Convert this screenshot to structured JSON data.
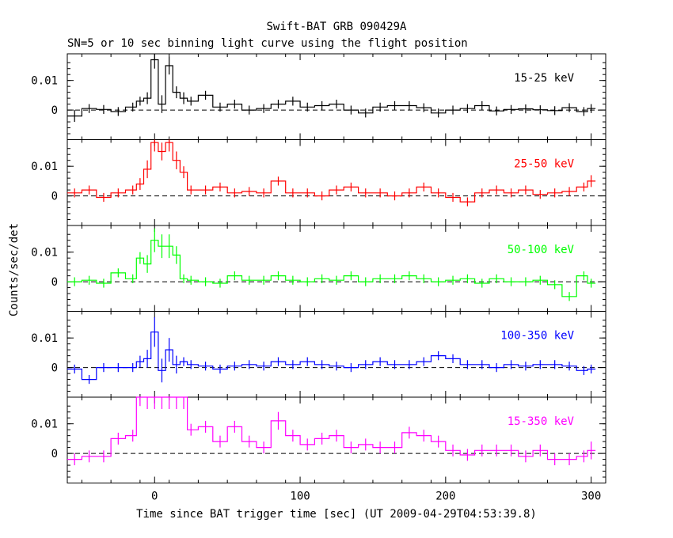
{
  "chart_data": {
    "type": "line",
    "title": "Swift-BAT GRB 090429A",
    "subtitle": "SN=5 or 10 sec binning light curve using the flight position",
    "xlabel": "Time since BAT trigger time [sec] (UT 2009-04-29T04:53:39.8)",
    "ylabel": "Counts/sec/det",
    "xlim": [
      -60,
      310
    ],
    "ylim": [
      -0.01,
      0.019
    ],
    "x_ticks": [
      0,
      100,
      200,
      300
    ],
    "y_ticks": [
      0,
      0.01
    ],
    "y_tick_labels": [
      "0",
      "0.01"
    ],
    "x_tick_labels": [
      "0",
      "100",
      "200",
      "300"
    ],
    "zero_line": "dashed",
    "panels": [
      {
        "name": "15-25 keV",
        "color": "#000000",
        "x": [
          -55,
          -45,
          -35,
          -25,
          -15,
          -10,
          -5,
          0,
          5,
          10,
          15,
          20,
          25,
          35,
          45,
          55,
          65,
          75,
          85,
          95,
          105,
          115,
          125,
          135,
          145,
          155,
          165,
          175,
          185,
          195,
          205,
          215,
          225,
          235,
          245,
          255,
          265,
          275,
          285,
          295,
          300
        ],
        "y": [
          -0.002,
          0.0005,
          0.0002,
          -0.0005,
          0.001,
          0.003,
          0.004,
          0.017,
          0.002,
          0.015,
          0.006,
          0.004,
          0.003,
          0.005,
          0.001,
          0.002,
          0,
          0.0005,
          0.002,
          0.003,
          0.001,
          0.0015,
          0.002,
          0,
          -0.001,
          0.001,
          0.0015,
          0.0015,
          0.0008,
          -0.001,
          0,
          0.0005,
          0.0015,
          -0.0003,
          0.0002,
          0.0004,
          0.0001,
          -0.0002,
          0.0008,
          -0.0005,
          0.0005
        ],
        "err": [
          0.002,
          0.0015,
          0.0015,
          0.0015,
          0.0015,
          0.0015,
          0.002,
          0.003,
          0.003,
          0.003,
          0.002,
          0.002,
          0.0015,
          0.0015,
          0.0015,
          0.0015,
          0.0015,
          0.0015,
          0.0015,
          0.0015,
          0.0015,
          0.0015,
          0.0015,
          0.0015,
          0.0015,
          0.0015,
          0.0015,
          0.0015,
          0.0015,
          0.0015,
          0.0015,
          0.0015,
          0.0015,
          0.0015,
          0.0015,
          0.0015,
          0.0015,
          0.0015,
          0.0015,
          0.0015,
          0.0015
        ]
      },
      {
        "name": "25-50 keV",
        "color": "#ff0000",
        "x": [
          -55,
          -45,
          -35,
          -25,
          -15,
          -10,
          -5,
          0,
          5,
          10,
          15,
          20,
          25,
          35,
          45,
          55,
          65,
          75,
          85,
          95,
          105,
          115,
          125,
          135,
          145,
          155,
          165,
          175,
          185,
          195,
          205,
          215,
          225,
          235,
          245,
          255,
          265,
          275,
          285,
          295,
          300
        ],
        "y": [
          0.001,
          0.002,
          -0.0005,
          0.001,
          0.002,
          0.004,
          0.009,
          0.018,
          0.015,
          0.018,
          0.012,
          0.008,
          0.002,
          0.002,
          0.003,
          0.001,
          0.0015,
          0.001,
          0.005,
          0.001,
          0.001,
          0,
          0.002,
          0.003,
          0.001,
          0.001,
          0,
          0.001,
          0.003,
          0.001,
          -0.0005,
          -0.002,
          0.001,
          0.002,
          0.001,
          0.002,
          0.0005,
          0.001,
          0.0015,
          0.003,
          0.005
        ],
        "err": [
          0.0015,
          0.0015,
          0.0015,
          0.0015,
          0.0015,
          0.002,
          0.003,
          0.003,
          0.003,
          0.003,
          0.003,
          0.002,
          0.0015,
          0.0015,
          0.0015,
          0.0015,
          0.0015,
          0.0015,
          0.0015,
          0.0015,
          0.0015,
          0.0015,
          0.0015,
          0.0015,
          0.0015,
          0.0015,
          0.0015,
          0.0015,
          0.0015,
          0.0015,
          0.0015,
          0.0015,
          0.0015,
          0.0015,
          0.0015,
          0.0015,
          0.0015,
          0.0015,
          0.0015,
          0.0015,
          0.002
        ]
      },
      {
        "name": "50-100 keV",
        "color": "#00ff00",
        "x": [
          -55,
          -45,
          -35,
          -25,
          -15,
          -10,
          -5,
          0,
          5,
          10,
          15,
          20,
          25,
          35,
          45,
          55,
          65,
          75,
          85,
          95,
          105,
          115,
          125,
          135,
          145,
          155,
          165,
          175,
          185,
          195,
          205,
          215,
          225,
          235,
          245,
          255,
          265,
          275,
          285,
          295,
          300
        ],
        "y": [
          0,
          0.0005,
          -0.0005,
          0.003,
          0.001,
          0.008,
          0.006,
          0.014,
          0.012,
          0.012,
          0.009,
          0.001,
          0.0005,
          0,
          -0.0005,
          0.002,
          0.0005,
          0.0005,
          0.002,
          0.0005,
          0,
          0.001,
          0.0005,
          0.002,
          0,
          0.001,
          0.001,
          0.002,
          0.001,
          0,
          0.0005,
          0.001,
          -0.0005,
          0.001,
          0,
          0,
          0.0005,
          -0.001,
          -0.005,
          0.002,
          -0.0005
        ],
        "err": [
          0.0015,
          0.0015,
          0.0015,
          0.0015,
          0.0015,
          0.002,
          0.003,
          0.004,
          0.004,
          0.004,
          0.003,
          0.0015,
          0.0015,
          0.0015,
          0.0015,
          0.0015,
          0.0015,
          0.0015,
          0.0015,
          0.0015,
          0.0015,
          0.0015,
          0.0015,
          0.0015,
          0.0015,
          0.0015,
          0.0015,
          0.0015,
          0.0015,
          0.0015,
          0.0015,
          0.0015,
          0.0015,
          0.0015,
          0.0015,
          0.0015,
          0.0015,
          0.0015,
          0.0015,
          0.0015,
          0.0015
        ]
      },
      {
        "name": "100-350 keV",
        "color": "#0000ff",
        "x": [
          -55,
          -45,
          -35,
          -25,
          -15,
          -10,
          -5,
          0,
          5,
          10,
          15,
          20,
          25,
          35,
          45,
          55,
          65,
          75,
          85,
          95,
          105,
          115,
          125,
          135,
          145,
          155,
          165,
          175,
          185,
          195,
          205,
          215,
          225,
          235,
          245,
          255,
          265,
          275,
          285,
          295,
          300
        ],
        "y": [
          -0.0005,
          -0.004,
          0,
          0,
          0,
          0.002,
          0.003,
          0.012,
          -0.001,
          0.006,
          0.001,
          0.002,
          0.001,
          0.0005,
          -0.0005,
          0.0005,
          0.001,
          0.0005,
          0.002,
          0.001,
          0.002,
          0.001,
          0.0005,
          0,
          0.001,
          0.002,
          0.001,
          0.001,
          0.002,
          0.004,
          0.003,
          0.001,
          0.001,
          0,
          0.001,
          0.0005,
          0.001,
          0.001,
          0.0005,
          -0.001,
          -0.0005
        ],
        "err": [
          0.0015,
          0.0015,
          0.0015,
          0.0015,
          0.0015,
          0.002,
          0.003,
          0.005,
          0.004,
          0.004,
          0.003,
          0.0015,
          0.0015,
          0.0015,
          0.0015,
          0.0015,
          0.0015,
          0.0015,
          0.0015,
          0.0015,
          0.0015,
          0.0015,
          0.0015,
          0.0015,
          0.0015,
          0.0015,
          0.0015,
          0.0015,
          0.0015,
          0.0015,
          0.0015,
          0.0015,
          0.0015,
          0.0015,
          0.0015,
          0.0015,
          0.0015,
          0.0015,
          0.0015,
          0.0015,
          0.0015
        ]
      },
      {
        "name": "15-350 keV",
        "color": "#ff00ff",
        "x": [
          -55,
          -45,
          -35,
          -25,
          -15,
          -10,
          -5,
          0,
          5,
          10,
          15,
          20,
          25,
          35,
          45,
          55,
          65,
          75,
          85,
          95,
          105,
          115,
          125,
          135,
          145,
          155,
          165,
          175,
          185,
          195,
          205,
          215,
          225,
          235,
          245,
          255,
          265,
          275,
          285,
          295,
          300
        ],
        "y": [
          -0.002,
          -0.001,
          -0.001,
          0.005,
          0.006,
          0.019,
          0.019,
          0.019,
          0.019,
          0.019,
          0.019,
          0.019,
          0.008,
          0.009,
          0.004,
          0.009,
          0.004,
          0.002,
          0.011,
          0.006,
          0.003,
          0.005,
          0.006,
          0.002,
          0.003,
          0.002,
          0.002,
          0.007,
          0.006,
          0.004,
          0.001,
          -0.0005,
          0.001,
          0.001,
          0.001,
          -0.001,
          0.001,
          -0.002,
          -0.002,
          -0.001,
          0.001
        ],
        "err": [
          0.002,
          0.002,
          0.002,
          0.002,
          0.002,
          0.003,
          0.004,
          0.004,
          0.004,
          0.004,
          0.004,
          0.004,
          0.002,
          0.002,
          0.002,
          0.002,
          0.002,
          0.002,
          0.003,
          0.002,
          0.002,
          0.002,
          0.002,
          0.002,
          0.002,
          0.002,
          0.002,
          0.002,
          0.002,
          0.002,
          0.002,
          0.002,
          0.002,
          0.002,
          0.002,
          0.002,
          0.002,
          0.002,
          0.002,
          0.002,
          0.003
        ]
      }
    ]
  }
}
